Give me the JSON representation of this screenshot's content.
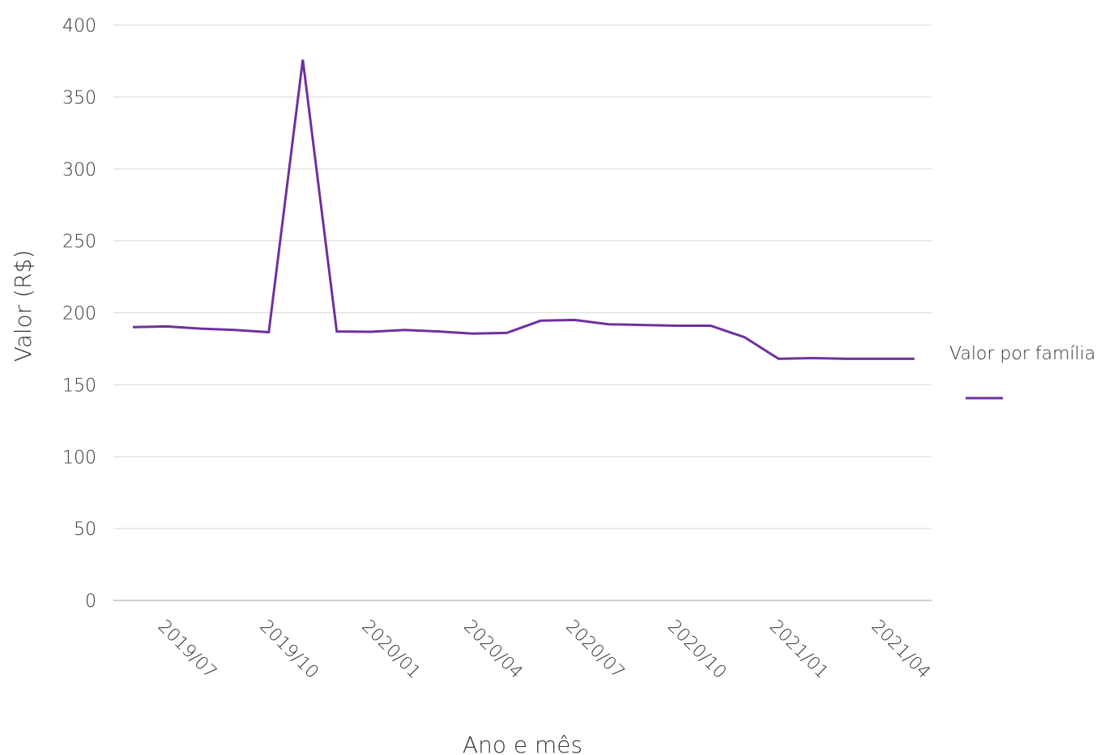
{
  "chart_data": {
    "type": "line",
    "xlabel": "Ano e mês",
    "ylabel": "Valor (R$)",
    "ylim": [
      0,
      400
    ],
    "yticks": [
      0,
      50,
      100,
      150,
      200,
      250,
      300,
      350,
      400
    ],
    "xticks": [
      "2019/07",
      "2019/10",
      "2020/01",
      "2020/04",
      "2020/07",
      "2020/10",
      "2021/01",
      "2021/04"
    ],
    "grid": true,
    "legend": {
      "title": "Valor por família",
      "placement": "right"
    },
    "x": [
      "2019/06",
      "2019/07",
      "2019/08",
      "2019/09",
      "2019/10",
      "2019/11",
      "2019/12",
      "2020/01",
      "2020/02",
      "2020/03",
      "2020/04",
      "2020/05",
      "2020/06",
      "2020/07",
      "2020/08",
      "2020/09",
      "2020/10",
      "2020/11",
      "2020/12",
      "2021/01",
      "2021/02",
      "2021/03",
      "2021/04",
      "2021/05"
    ],
    "series": [
      {
        "name": "",
        "color": "#7030a0",
        "values": [
          190,
          190.5,
          189,
          188,
          186.5,
          376,
          187,
          186.8,
          188,
          187,
          185.5,
          186,
          194.5,
          195,
          192,
          191.5,
          191,
          191,
          183,
          168,
          168.5,
          168,
          168,
          168
        ]
      }
    ]
  }
}
